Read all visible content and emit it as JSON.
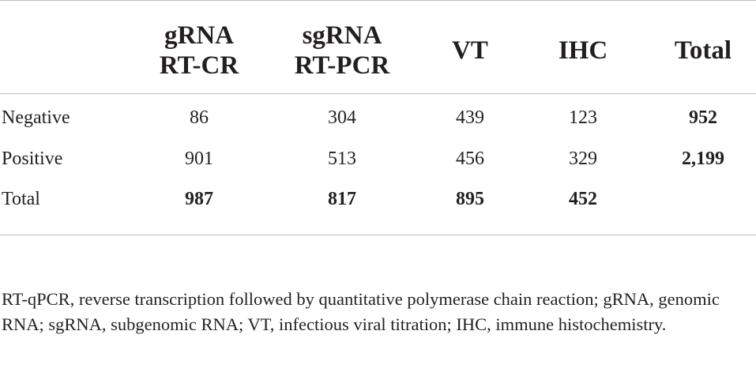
{
  "table": {
    "headers": [
      {
        "line1": "gRNA",
        "line2": "RT-CR"
      },
      {
        "line1": "sgRNA",
        "line2": "RT-PCR"
      },
      {
        "line1": "VT",
        "line2": ""
      },
      {
        "line1": "IHC",
        "line2": ""
      },
      {
        "line1": "Total",
        "line2": ""
      }
    ],
    "rows": [
      {
        "label": "Negative",
        "values": [
          "86",
          "304",
          "439",
          "123",
          "952"
        ]
      },
      {
        "label": "Positive",
        "values": [
          "901",
          "513",
          "456",
          "329",
          "2,199"
        ]
      },
      {
        "label": "Total",
        "values": [
          "987",
          "817",
          "895",
          "452",
          ""
        ]
      }
    ]
  },
  "footnote": "RT-qPCR, reverse transcription followed by quantitative polymerase chain reaction; gRNA, genomic RNA; sgRNA, subgenomic RNA; VT, infectious viral titration; IHC, immune histochemistry."
}
